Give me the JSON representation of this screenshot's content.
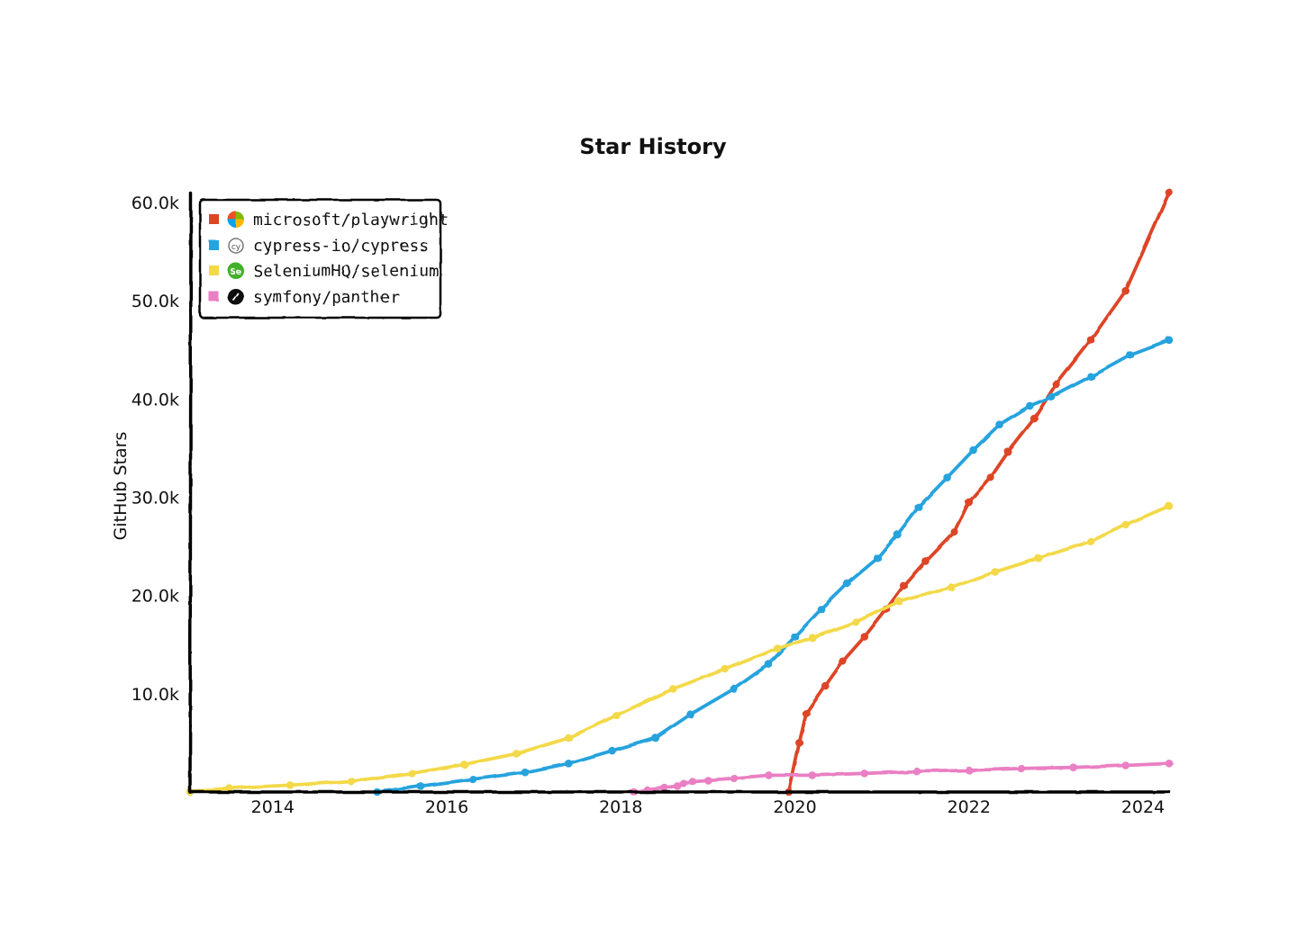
{
  "chart_data": {
    "type": "line",
    "title": "Star History",
    "xlabel": "",
    "ylabel": "GitHub Stars",
    "xlim": [
      2013.05,
      2024.3
    ],
    "ylim": [
      0,
      61000
    ],
    "x_ticks": [
      2014,
      2016,
      2018,
      2020,
      2022,
      2024
    ],
    "x_tick_labels": [
      "2014",
      "2016",
      "2018",
      "2020",
      "2022",
      "2024"
    ],
    "y_ticks": [
      10000,
      20000,
      30000,
      40000,
      50000,
      60000
    ],
    "y_tick_labels": [
      "10.0k",
      "20.0k",
      "30.0k",
      "40.0k",
      "50.0k",
      "60.0k"
    ],
    "grid": false,
    "legend_position": "top-left",
    "series": [
      {
        "name": "microsoft/playwright",
        "color": "#dd4528",
        "icon": "microsoft-logo-icon",
        "points": [
          [
            2019.93,
            0
          ],
          [
            2020.05,
            5000
          ],
          [
            2020.13,
            8000
          ],
          [
            2020.35,
            10800
          ],
          [
            2020.55,
            13300
          ],
          [
            2020.8,
            15800
          ],
          [
            2021.05,
            18600
          ],
          [
            2021.25,
            21000
          ],
          [
            2021.5,
            23500
          ],
          [
            2021.83,
            26500
          ],
          [
            2022.0,
            29500
          ],
          [
            2022.25,
            32000
          ],
          [
            2022.45,
            34600
          ],
          [
            2022.75,
            38000
          ],
          [
            2023.0,
            41500
          ],
          [
            2023.4,
            46000
          ],
          [
            2023.8,
            51000
          ],
          [
            2024.3,
            61000
          ]
        ]
      },
      {
        "name": "cypress-io/cypress",
        "color": "#28a3dd",
        "icon": "cypress-logo-icon",
        "points": [
          [
            2015.2,
            0
          ],
          [
            2015.7,
            600
          ],
          [
            2016.3,
            1300
          ],
          [
            2016.9,
            2000
          ],
          [
            2017.4,
            2900
          ],
          [
            2017.9,
            4200
          ],
          [
            2018.4,
            5500
          ],
          [
            2018.8,
            7900
          ],
          [
            2019.3,
            10500
          ],
          [
            2019.7,
            13000
          ],
          [
            2020.0,
            15800
          ],
          [
            2020.3,
            18600
          ],
          [
            2020.6,
            21200
          ],
          [
            2020.95,
            23800
          ],
          [
            2021.18,
            26200
          ],
          [
            2021.42,
            29000
          ],
          [
            2021.75,
            32000
          ],
          [
            2022.05,
            34800
          ],
          [
            2022.35,
            37400
          ],
          [
            2022.7,
            39300
          ],
          [
            2022.95,
            40200
          ],
          [
            2023.4,
            42300
          ],
          [
            2023.85,
            44500
          ],
          [
            2024.3,
            46000
          ]
        ]
      },
      {
        "name": "SeleniumHQ/selenium",
        "color": "#f3d949",
        "icon": "selenium-logo-icon",
        "points": [
          [
            2013.05,
            0
          ],
          [
            2013.5,
            400
          ],
          [
            2014.2,
            700
          ],
          [
            2014.9,
            1100
          ],
          [
            2015.6,
            1900
          ],
          [
            2016.2,
            2800
          ],
          [
            2016.8,
            3900
          ],
          [
            2017.4,
            5500
          ],
          [
            2017.95,
            7800
          ],
          [
            2018.6,
            10500
          ],
          [
            2019.2,
            12500
          ],
          [
            2019.8,
            14600
          ],
          [
            2020.2,
            15700
          ],
          [
            2020.7,
            17300
          ],
          [
            2021.2,
            19400
          ],
          [
            2021.8,
            20800
          ],
          [
            2022.3,
            22400
          ],
          [
            2022.8,
            23800
          ],
          [
            2023.4,
            25500
          ],
          [
            2023.8,
            27200
          ],
          [
            2024.3,
            29100
          ]
        ]
      },
      {
        "name": "symfony/panther",
        "color": "#ea7fc3",
        "icon": "symfony-logo-icon",
        "points": [
          [
            2018.15,
            0
          ],
          [
            2018.3,
            200
          ],
          [
            2018.5,
            450
          ],
          [
            2018.65,
            600
          ],
          [
            2018.72,
            900
          ],
          [
            2018.82,
            1100
          ],
          [
            2019.0,
            1200
          ],
          [
            2019.3,
            1400
          ],
          [
            2019.7,
            1700
          ],
          [
            2020.2,
            1700
          ],
          [
            2020.8,
            1900
          ],
          [
            2021.4,
            2100
          ],
          [
            2022.0,
            2200
          ],
          [
            2022.6,
            2400
          ],
          [
            2023.2,
            2500
          ],
          [
            2023.8,
            2700
          ],
          [
            2024.3,
            2900
          ]
        ]
      }
    ]
  }
}
